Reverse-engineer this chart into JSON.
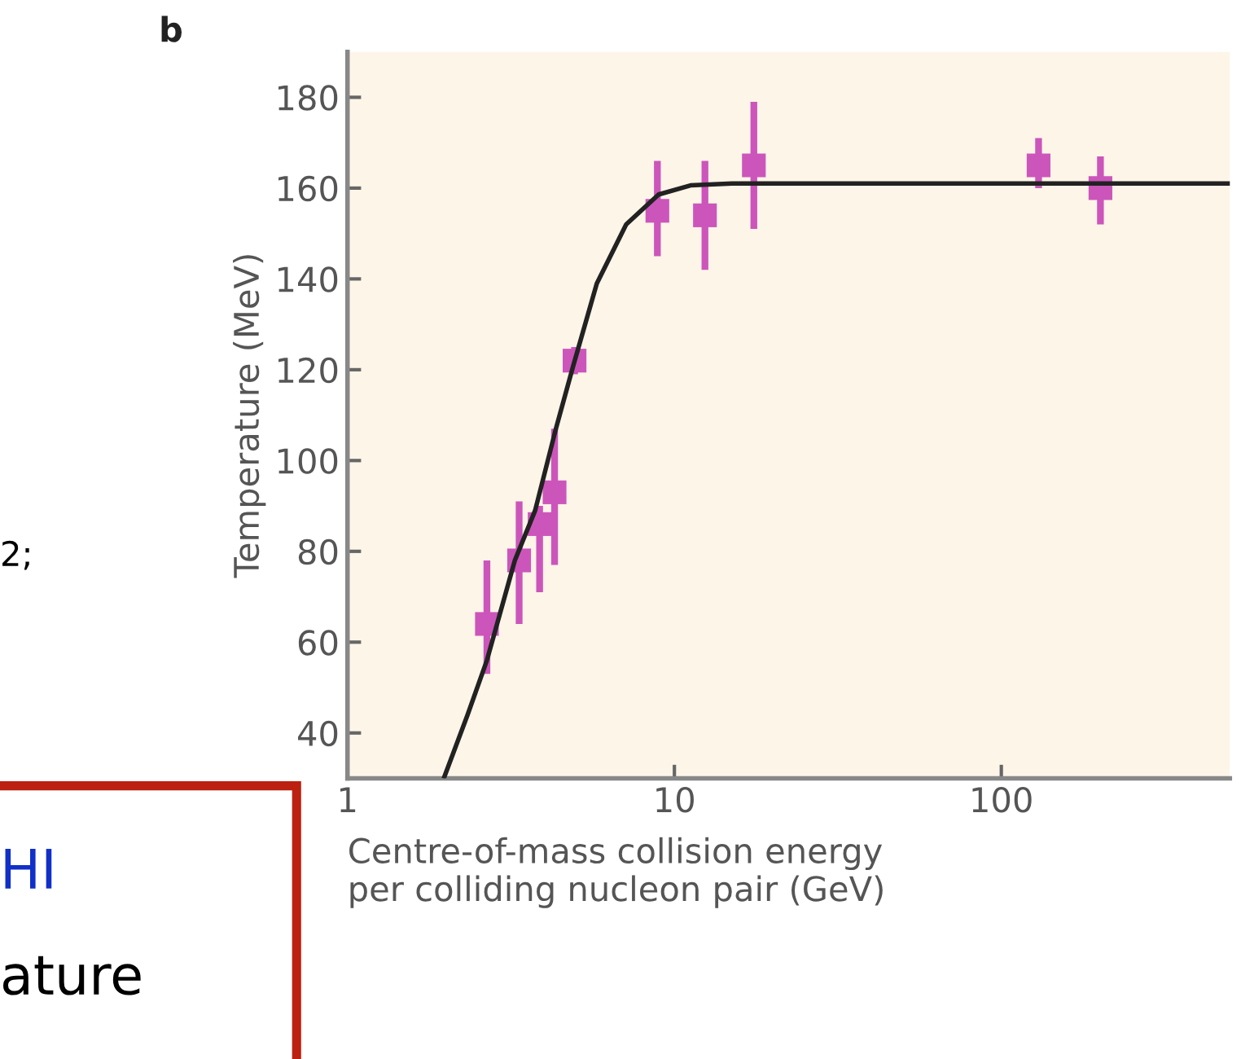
{
  "chart_data": {
    "type": "scatter",
    "xlabel": "Centre-of-mass collision energy\nper colliding nucleon pair (GeV)",
    "ylabel": "Temperature (MeV)",
    "log": "x",
    "xlim": [
      1,
      500
    ],
    "xticks": [
      1,
      10,
      100
    ],
    "ylim": [
      30,
      190
    ],
    "yticks": [
      40,
      60,
      80,
      100,
      120,
      140,
      160,
      180
    ],
    "grid": false,
    "marker": "square",
    "series": [
      {
        "color": "#cc55bb",
        "x": [
          2.67,
          3.35,
          3.87,
          4.3,
          4.95,
          8.87,
          12.4,
          17.5,
          130,
          201
        ],
        "values": [
          64,
          78,
          86,
          93,
          122,
          155,
          154,
          165,
          165,
          160
        ],
        "errors": [
          [
            53,
            78
          ],
          [
            64,
            91
          ],
          [
            71,
            90
          ],
          [
            77,
            107
          ],
          [
            119,
            125
          ],
          [
            145,
            166
          ],
          [
            142,
            166
          ],
          [
            151,
            179
          ],
          [
            160,
            171
          ],
          [
            152,
            167
          ]
        ]
      },
      {
        "type": "line",
        "color": "#222222",
        "marker": "none",
        "x": [
          1.98,
          2.33,
          2.67,
          3.25,
          3.75,
          4.34,
          4.91,
          5.79,
          7.12,
          8.95,
          11.2,
          15,
          500
        ],
        "values": [
          30.4,
          44,
          56,
          78,
          89,
          107,
          121,
          139,
          152,
          158.6,
          160.6,
          161,
          161
        ]
      }
    ],
    "annotations": [
      "b",
      "2;",
      "HI",
      "ature"
    ]
  }
}
